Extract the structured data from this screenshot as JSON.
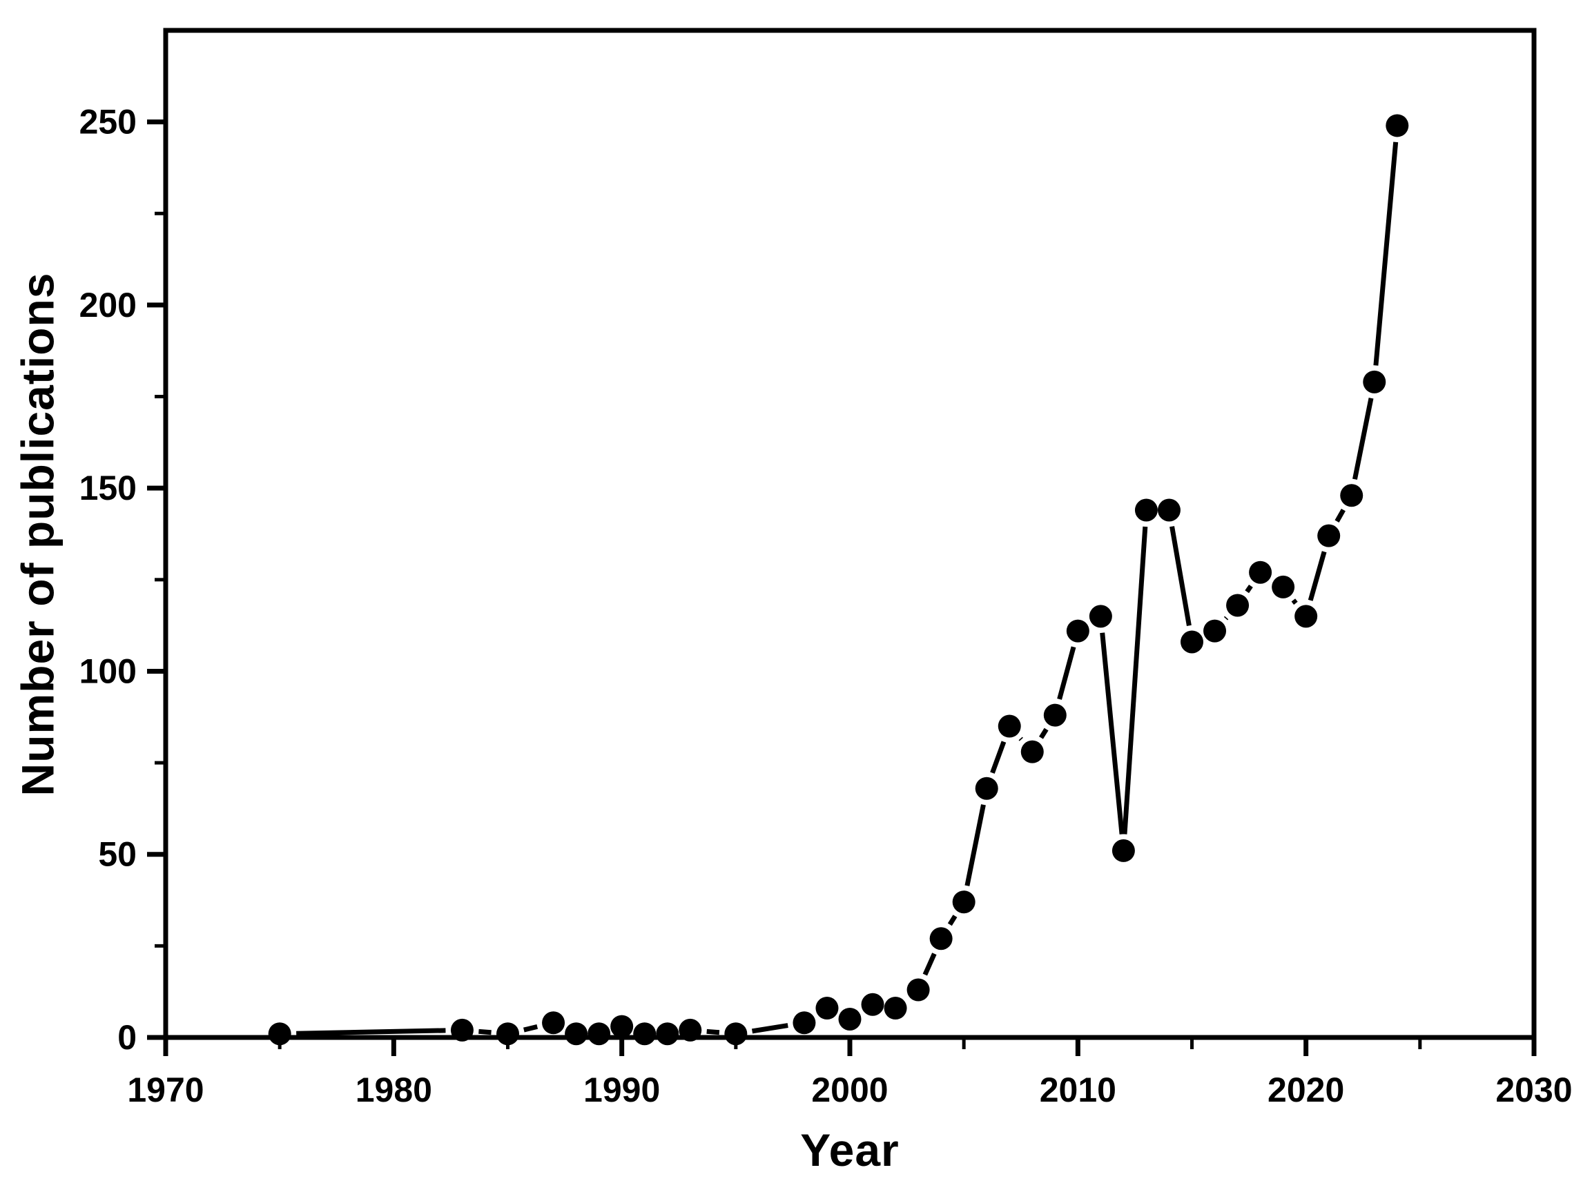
{
  "chart_data": {
    "type": "line",
    "title": "",
    "xlabel": "Year",
    "ylabel": "Number of publications",
    "x": [
      1975,
      1983,
      1985,
      1987,
      1988,
      1989,
      1990,
      1991,
      1992,
      1993,
      1995,
      1998,
      1999,
      2000,
      2001,
      2002,
      2003,
      2004,
      2005,
      2006,
      2007,
      2008,
      2009,
      2010,
      2011,
      2012,
      2013,
      2014,
      2015,
      2016,
      2017,
      2018,
      2019,
      2020,
      2021,
      2022,
      2023,
      2024
    ],
    "y": [
      1,
      2,
      1,
      4,
      1,
      1,
      3,
      1,
      1,
      2,
      1,
      4,
      8,
      5,
      9,
      8,
      13,
      27,
      37,
      68,
      85,
      78,
      88,
      111,
      115,
      51,
      144,
      144,
      108,
      111,
      118,
      127,
      123,
      115,
      137,
      148,
      179,
      249
    ],
    "xlim": [
      1970,
      2030
    ],
    "ylim": [
      0,
      275
    ],
    "x_major_ticks": [
      1970,
      1980,
      1990,
      2000,
      2010,
      2020,
      2030
    ],
    "x_minor_ticks": [
      1975,
      1985,
      1995,
      2005,
      2015,
      2025
    ],
    "y_major_ticks": [
      0,
      50,
      100,
      150,
      200,
      250
    ],
    "y_minor_ticks": [
      25,
      75,
      125,
      175,
      225
    ],
    "grid": false,
    "legend": "none",
    "marker": "filled-circle",
    "line_style": "solid-with-marker-gaps",
    "colors": {
      "line": "#000000",
      "marker": "#000000",
      "axis": "#000000",
      "text": "#000000",
      "background": "#ffffff"
    }
  }
}
